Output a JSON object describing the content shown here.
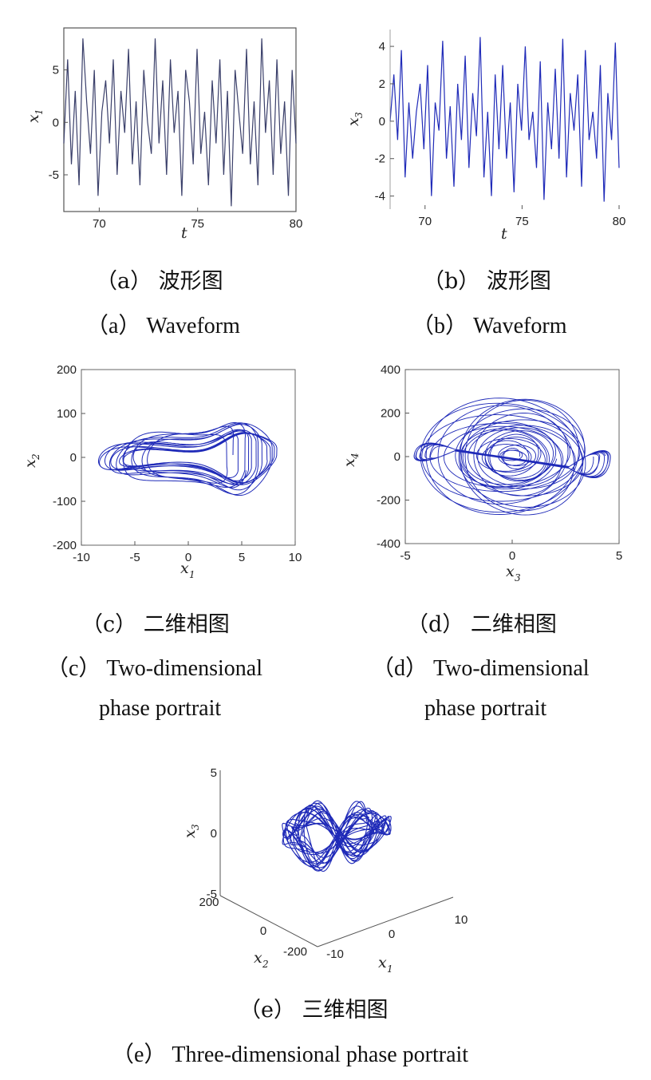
{
  "captions": {
    "a_cn": "（a） 波形图",
    "a_en": "（a） Waveform",
    "b_cn": "（b） 波形图",
    "b_en": "（b） Waveform",
    "c_cn": "（c） 二维相图",
    "c_en1": "（c） Two-dimensional",
    "c_en2": "phase portrait",
    "d_cn": "（d） 二维相图",
    "d_en1": "（d） Two-dimensional",
    "d_en2": "phase portrait",
    "e_cn": "（e） 三维相图",
    "e_en": "（e） Three-dimensional phase portrait"
  },
  "colors": {
    "trace": "#1f2ab8",
    "trace_wave_a": "#3a3f6a",
    "axis": "#444444"
  },
  "chart_data": [
    {
      "id": "a",
      "type": "line",
      "xlabel": "t",
      "ylabel": "x",
      "ylabel_sub": "1",
      "xlim": [
        68.2,
        80
      ],
      "ylim": [
        -8.5,
        9
      ],
      "xticks": [
        70,
        75,
        80
      ],
      "yticks": [
        5,
        0,
        -5
      ],
      "series": [
        {
          "x_start": 68.2,
          "x_end": 80,
          "values": [
            -2,
            6,
            -4,
            3,
            -6,
            8,
            2,
            -3,
            5,
            -7,
            1,
            4,
            -2,
            6,
            -5,
            3,
            -1,
            7,
            -4,
            2,
            -6,
            5,
            0,
            -3,
            8,
            -2,
            4,
            -5,
            6,
            -1,
            3,
            -7,
            5,
            2,
            -4,
            7,
            -3,
            1,
            -6,
            4,
            -2,
            6,
            -5,
            3,
            -8,
            5,
            1,
            -3,
            7,
            -4,
            2,
            -6,
            8,
            -1,
            4,
            -5,
            6,
            -3,
            2,
            -7,
            5,
            -2
          ]
        }
      ]
    },
    {
      "id": "b",
      "type": "line",
      "xlabel": "t",
      "ylabel": "x",
      "ylabel_sub": "3",
      "xlim": [
        68.2,
        80
      ],
      "ylim": [
        -4.7,
        4.9
      ],
      "xticks": [
        70,
        75,
        80
      ],
      "yticks": [
        4,
        2,
        0,
        -2,
        -4
      ],
      "series": [
        {
          "x_start": 68.2,
          "x_end": 80,
          "values": [
            0,
            2.5,
            -1,
            3.8,
            -3,
            1,
            -2,
            0.5,
            2,
            -1.5,
            3,
            -4,
            1,
            -0.5,
            4.3,
            -2,
            0.8,
            -3.5,
            2,
            -1,
            3.5,
            -2.5,
            1.5,
            -0.8,
            4.5,
            -3,
            0.5,
            -4,
            2.5,
            -1.5,
            3,
            -2,
            1,
            -3.8,
            2,
            -0.5,
            4,
            -1,
            0.5,
            -2.5,
            3.2,
            -4.2,
            1,
            -1.5,
            2.8,
            -2,
            4.4,
            -3,
            1.5,
            -0.5,
            2.5,
            -3.5,
            3.8,
            -1,
            0.5,
            -2,
            3,
            -4.3,
            1.5,
            -1,
            4.2,
            -2.5
          ]
        }
      ]
    },
    {
      "id": "c",
      "type": "line",
      "xlabel": "x",
      "xlabel_sub": "1",
      "ylabel": "x",
      "ylabel_sub": "2",
      "xlim": [
        -10,
        10
      ],
      "ylim": [
        -200,
        200
      ],
      "xticks": [
        -10,
        -5,
        0,
        5,
        10
      ],
      "yticks": [
        200,
        100,
        0,
        -100,
        -200
      ]
    },
    {
      "id": "d",
      "type": "line",
      "xlabel": "x",
      "xlabel_sub": "3",
      "ylabel": "x",
      "ylabel_sub": "4",
      "xlim": [
        -5,
        5
      ],
      "ylim": [
        -400,
        400
      ],
      "xticks": [
        -5,
        0,
        5
      ],
      "yticks": [
        400,
        200,
        0,
        -200,
        -400
      ]
    },
    {
      "id": "e",
      "type": "line",
      "xlabel": "x",
      "xlabel_sub": "1",
      "ylabel": "x",
      "ylabel_sub": "2",
      "zlabel": "x",
      "zlabel_sub": "3",
      "xlim": [
        -10,
        10
      ],
      "ylim": [
        -200,
        200
      ],
      "zlim": [
        -5,
        5
      ],
      "xticks": [
        -10,
        0,
        10
      ],
      "yticks": [
        -200,
        0,
        200
      ],
      "zticks": [
        -5,
        0,
        5
      ]
    }
  ]
}
